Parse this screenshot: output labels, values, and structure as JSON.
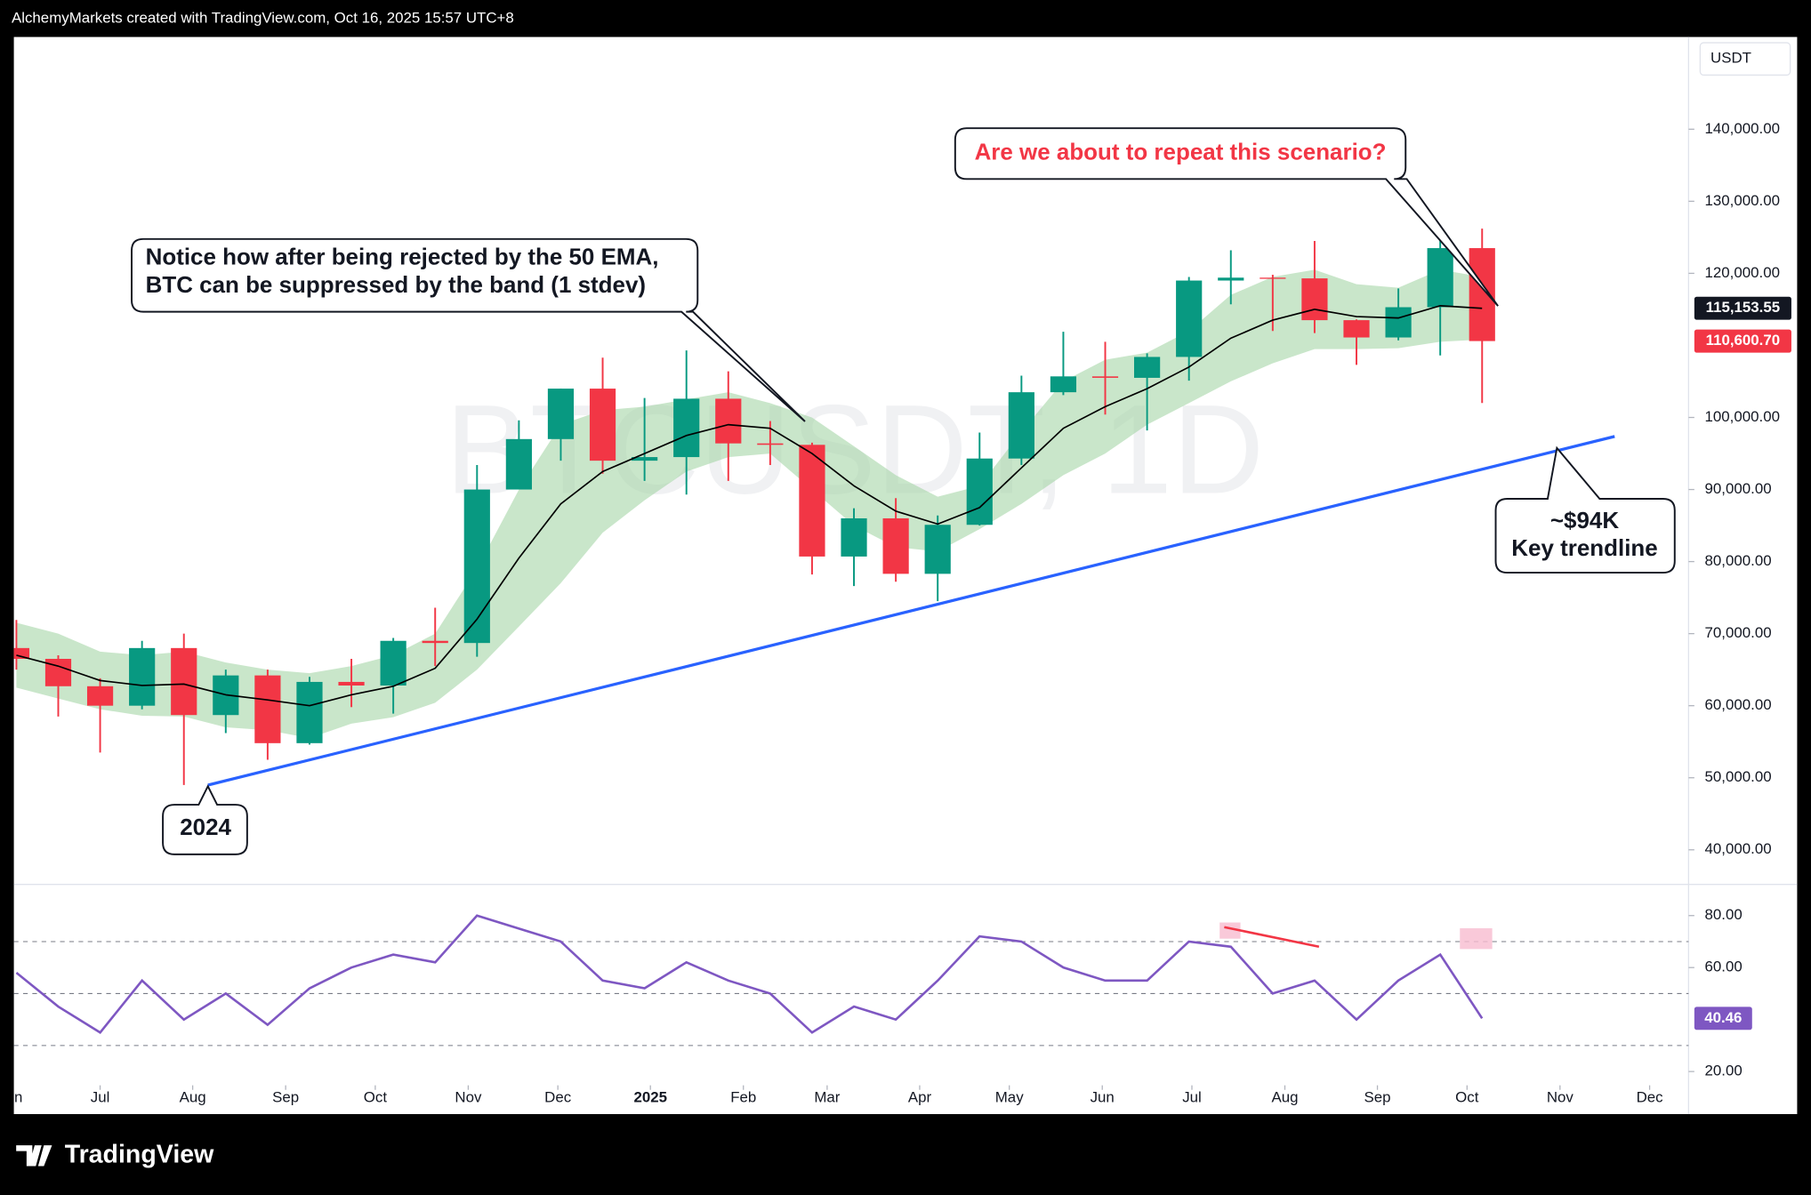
{
  "header": {
    "text": "AlchemyMarkets created with TradingView.com, Oct 16, 2025 15:57 UTC+8"
  },
  "footer": {
    "brand": "TradingView"
  },
  "chart_data": [
    {
      "type": "candlestick",
      "watermark": "BTCUSDT, 1D",
      "currency": "USDT",
      "categories": [
        null,
        null,
        null,
        null,
        null,
        null,
        null,
        null,
        null,
        null,
        null,
        null,
        null,
        null,
        null,
        null,
        null,
        null,
        null,
        null,
        null,
        null,
        null,
        null,
        null,
        null,
        null,
        null,
        null,
        null,
        null,
        null,
        null,
        null,
        null,
        null
      ],
      "open": [
        68000,
        66500,
        62700,
        60000,
        68000,
        58700,
        64200,
        54800,
        63300,
        62800,
        69000,
        68700,
        90000,
        97000,
        104000,
        94000,
        94500,
        102600,
        96400,
        96200,
        80700,
        86000,
        78300,
        85100,
        94300,
        103500,
        105700,
        105500,
        108400,
        119000,
        119400,
        119300,
        113500,
        111100,
        115300,
        123500
      ],
      "high": [
        71900,
        67000,
        63800,
        69000,
        70000,
        65000,
        65000,
        64000,
        66500,
        69400,
        73600,
        93400,
        99600,
        104000,
        108300,
        102700,
        109300,
        106400,
        99500,
        96500,
        87400,
        88800,
        86400,
        97900,
        105800,
        111900,
        110500,
        108900,
        119500,
        123200,
        119800,
        124500,
        113600,
        117900,
        125700,
        126200
      ],
      "low": [
        65000,
        58500,
        53500,
        59500,
        49000,
        56200,
        52500,
        54600,
        59800,
        58900,
        65500,
        66800,
        90000,
        94000,
        92200,
        91200,
        89300,
        91200,
        93400,
        78200,
        76600,
        77200,
        74500,
        85000,
        93400,
        103100,
        100400,
        98200,
        105100,
        115700,
        112000,
        111700,
        107300,
        110700,
        108600,
        102000
      ],
      "close": [
        66500,
        62700,
        60000,
        68000,
        58700,
        64200,
        54800,
        63300,
        62800,
        69000,
        68700,
        90000,
        97000,
        104000,
        94000,
        94500,
        102600,
        96400,
        96200,
        80700,
        86000,
        78300,
        85100,
        94300,
        103500,
        105700,
        105500,
        108400,
        119000,
        119400,
        119300,
        113500,
        111100,
        115300,
        123500,
        110600.7
      ],
      "up_color": "#089981",
      "down_color": "#f23645",
      "ema": {
        "color": "#000000",
        "values": [
          67000,
          65500,
          63500,
          62800,
          63000,
          61500,
          60800,
          60000,
          61500,
          62700,
          65200,
          72000,
          80500,
          88000,
          92500,
          95000,
          97500,
          99000,
          98500,
          95000,
          90500,
          87000,
          85200,
          87500,
          93000,
          98500,
          101500,
          104000,
          107000,
          111000,
          113500,
          115000,
          114000,
          113800,
          115500,
          115153.55
        ]
      },
      "band": {
        "color": "#a5d6a7",
        "upper": [
          71500,
          70000,
          67500,
          67000,
          67500,
          66000,
          65000,
          64500,
          65500,
          67000,
          70000,
          79000,
          90000,
          99000,
          101000,
          101500,
          102500,
          103500,
          102000,
          100000,
          96000,
          92000,
          89000,
          90500,
          98000,
          105000,
          108000,
          109000,
          112000,
          117000,
          119500,
          120500,
          118500,
          118000,
          120500,
          119500
        ],
        "lower": [
          62500,
          61000,
          59500,
          58600,
          58500,
          57000,
          56600,
          55500,
          57500,
          58400,
          60400,
          65000,
          71000,
          77000,
          84000,
          88500,
          92500,
          94500,
          95000,
          90000,
          85000,
          82000,
          81400,
          84500,
          88000,
          92000,
          95000,
          99000,
          102000,
          105000,
          107500,
          109500,
          109500,
          109600,
          110500,
          110800
        ]
      },
      "ema_tag": {
        "value": 115153.55,
        "label": "115,153.55"
      },
      "price_tag": {
        "value": 110600.7,
        "label": "110,600.70"
      },
      "xlim": [
        -0.06,
        39.93
      ],
      "ylim": [
        35200,
        152800
      ],
      "yticks": [
        {
          "value": 40000,
          "label": "40,000.00"
        },
        {
          "value": 50000,
          "label": "50,000.00"
        },
        {
          "value": 60000,
          "label": "60,000.00"
        },
        {
          "value": 70000,
          "label": "70,000.00"
        },
        {
          "value": 80000,
          "label": "80,000.00"
        },
        {
          "value": 90000,
          "label": "90,000.00"
        },
        {
          "value": 100000,
          "label": "100,000.00"
        },
        {
          "value": 120000,
          "label": "120,000.00"
        },
        {
          "value": 130000,
          "label": "130,000.00"
        },
        {
          "value": 140000,
          "label": "140,000.00"
        }
      ],
      "annotations": [
        {
          "lines": [
            "Notice how after being rejected by the 50 EMA,",
            "BTC can be suppressed by the band (1 stdev)"
          ]
        },
        {
          "lines": [
            "Are we about to repeat this scenario?"
          ],
          "color": "#f23645"
        },
        {
          "lines": [
            "~$94K",
            "Key trendline"
          ]
        },
        {
          "lines": [
            "2024"
          ]
        }
      ]
    },
    {
      "type": "line",
      "color": "#7e57c2",
      "values": [
        58,
        45,
        35,
        55,
        40,
        50,
        38,
        52,
        60,
        65,
        62,
        80,
        75,
        70,
        55,
        52,
        62,
        55,
        50,
        35,
        45,
        40,
        55,
        72,
        70,
        60,
        55,
        55,
        70,
        68,
        50,
        55,
        40,
        55,
        65,
        40.46
      ],
      "levels": [
        70,
        50,
        30
      ],
      "xlim": [
        -0.06,
        39.93
      ],
      "ylim": [
        14.7,
        92
      ],
      "yticks": [
        {
          "value": 20,
          "label": "20.00"
        },
        {
          "value": 60,
          "label": "60.00"
        },
        {
          "value": 80,
          "label": "80.00"
        }
      ],
      "xticks": [
        {
          "value": -0.14,
          "label": "Jun"
        },
        {
          "value": 2.0,
          "label": "Jul"
        },
        {
          "value": 4.21,
          "label": "Aug"
        },
        {
          "value": 6.43,
          "label": "Sep"
        },
        {
          "value": 8.57,
          "label": "Oct"
        },
        {
          "value": 10.79,
          "label": "Nov"
        },
        {
          "value": 12.93,
          "label": "Dec"
        },
        {
          "value": 15.14,
          "label": "2025"
        },
        {
          "value": 17.36,
          "label": "Feb"
        },
        {
          "value": 19.36,
          "label": "Mar"
        },
        {
          "value": 21.57,
          "label": "Apr"
        },
        {
          "value": 23.71,
          "label": "May"
        },
        {
          "value": 25.93,
          "label": "Jun"
        },
        {
          "value": 28.07,
          "label": "Jul"
        },
        {
          "value": 30.29,
          "label": "Aug"
        },
        {
          "value": 32.5,
          "label": "Sep"
        },
        {
          "value": 34.64,
          "label": "Oct"
        },
        {
          "value": 36.86,
          "label": "Nov"
        },
        {
          "value": 39.0,
          "label": "Dec"
        }
      ]
    }
  ]
}
